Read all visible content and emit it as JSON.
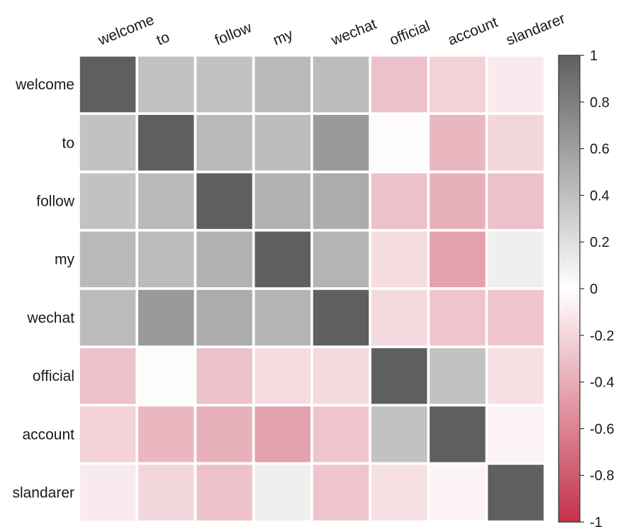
{
  "chart_data": {
    "type": "heatmap",
    "title": "",
    "xlabel": "",
    "ylabel": "",
    "row_labels": [
      "welcome",
      "to",
      "follow",
      "my",
      "wechat",
      "official",
      "account",
      "slandarer"
    ],
    "col_labels": [
      "welcome",
      "to",
      "follow",
      "my",
      "wechat",
      "official",
      "account",
      "slandarer"
    ],
    "values": [
      [
        1.0,
        0.38,
        0.38,
        0.44,
        0.42,
        -0.3,
        -0.22,
        -0.1
      ],
      [
        0.38,
        1.0,
        0.44,
        0.42,
        0.63,
        -0.02,
        -0.35,
        -0.2
      ],
      [
        0.38,
        0.44,
        1.0,
        0.48,
        0.52,
        -0.3,
        -0.38,
        -0.3
      ],
      [
        0.44,
        0.42,
        0.48,
        1.0,
        0.47,
        -0.17,
        -0.45,
        0.1
      ],
      [
        0.42,
        0.63,
        0.52,
        0.47,
        1.0,
        -0.18,
        -0.28,
        -0.28
      ],
      [
        -0.3,
        -0.02,
        -0.3,
        -0.17,
        -0.18,
        1.0,
        0.38,
        -0.15
      ],
      [
        -0.22,
        -0.35,
        -0.38,
        -0.45,
        -0.28,
        0.38,
        1.0,
        -0.06
      ],
      [
        -0.1,
        -0.2,
        -0.3,
        0.1,
        -0.28,
        -0.15,
        -0.06,
        1.0
      ]
    ],
    "colorbar": {
      "range": [
        -1,
        1
      ],
      "ticks": [
        1,
        0.8,
        0.6,
        0.4,
        0.2,
        0,
        -0.2,
        -0.4,
        -0.6,
        -0.8,
        -1
      ],
      "tick_labels": [
        "1",
        "0.8",
        "0.6",
        "0.4",
        "0.2",
        "0",
        "-0.2",
        "-0.4",
        "-0.6",
        "-0.8",
        "-1"
      ],
      "positive_color": "#5f5f5f",
      "zero_color": "#ffffff",
      "negative_color": "#c3314a"
    },
    "grid": false,
    "legend": "colorbar-right"
  }
}
